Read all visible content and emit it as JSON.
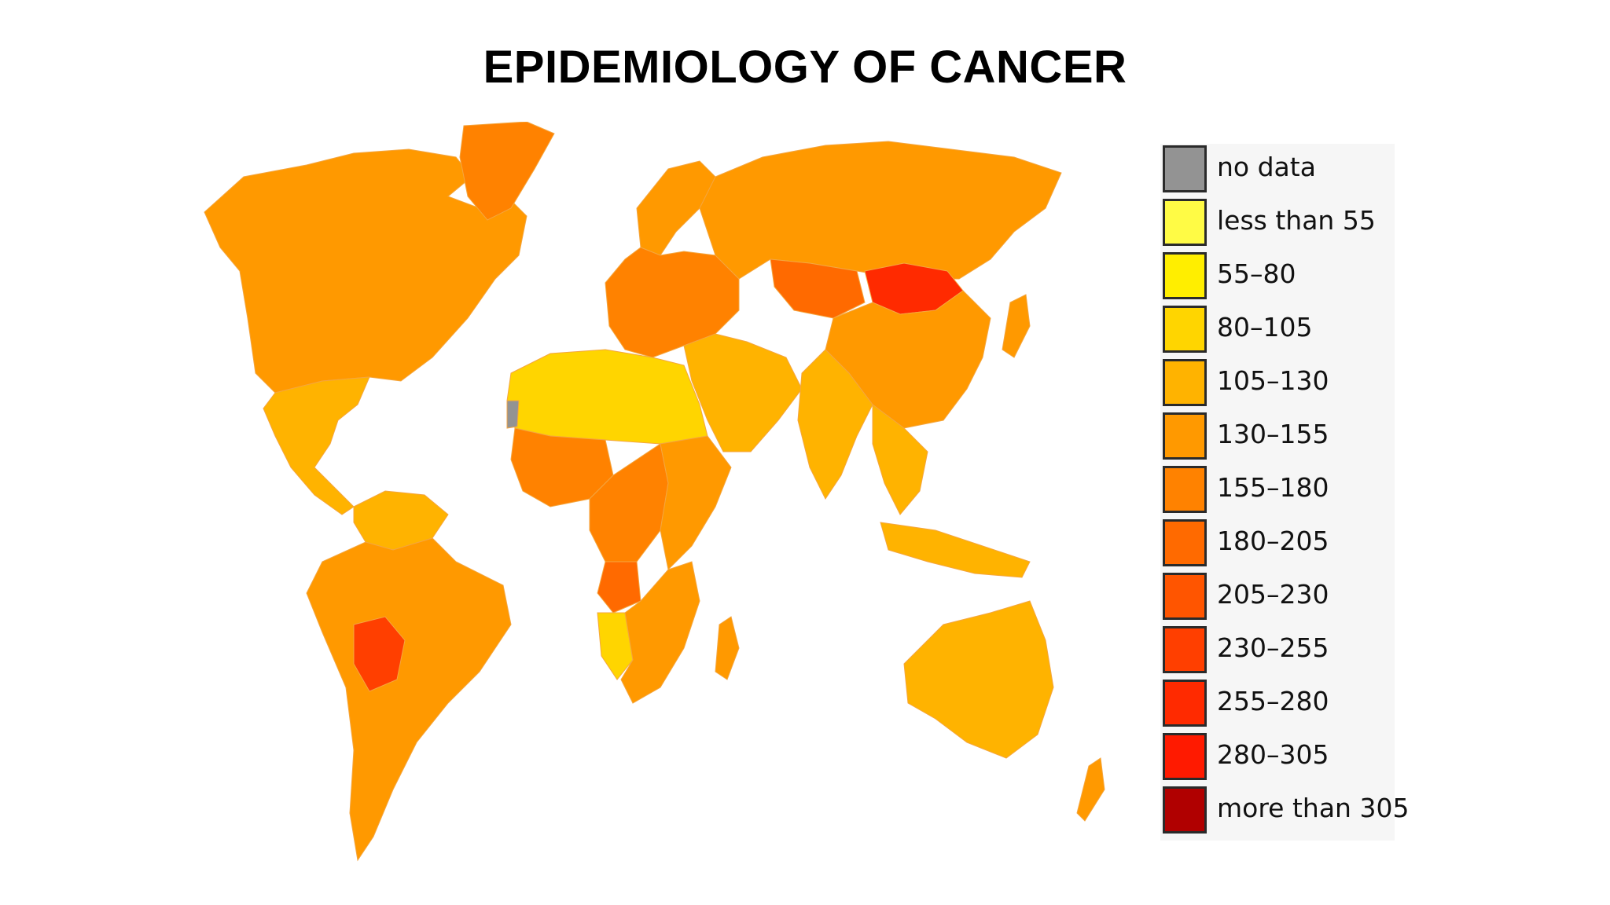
{
  "title": "EPIDEMIOLOGY OF CANCER",
  "legend": {
    "items": [
      {
        "label": "no data",
        "color": "#939393"
      },
      {
        "label": "less than 55",
        "color": "#fffb45"
      },
      {
        "label": "55–80",
        "color": "#ffee00"
      },
      {
        "label": "80–105",
        "color": "#ffd500"
      },
      {
        "label": "105–130",
        "color": "#ffb300"
      },
      {
        "label": "130–155",
        "color": "#ff9900"
      },
      {
        "label": "155–180",
        "color": "#ff8200"
      },
      {
        "label": "180–205",
        "color": "#ff6a00"
      },
      {
        "label": "205–230",
        "color": "#ff5500"
      },
      {
        "label": "230–255",
        "color": "#ff3f00"
      },
      {
        "label": "255–280",
        "color": "#ff2a00"
      },
      {
        "label": "280–305",
        "color": "#ff1a00"
      },
      {
        "label": "more than 305",
        "color": "#b00000"
      }
    ]
  },
  "map": {
    "regions": [
      {
        "name": "north-america",
        "color": "#ff9900"
      },
      {
        "name": "greenland",
        "color": "#ff8200"
      },
      {
        "name": "mexico-central-america",
        "color": "#ffb300"
      },
      {
        "name": "south-america",
        "color": "#ff9900"
      },
      {
        "name": "bolivia",
        "color": "#ff3f00"
      },
      {
        "name": "venezuela-colombia",
        "color": "#ffb300"
      },
      {
        "name": "europe",
        "color": "#ff8200"
      },
      {
        "name": "scandinavia",
        "color": "#ff9900"
      },
      {
        "name": "russia",
        "color": "#ff9900"
      },
      {
        "name": "kazakhstan",
        "color": "#ff6a00"
      },
      {
        "name": "mongolia",
        "color": "#ff2a00"
      },
      {
        "name": "china",
        "color": "#ff9900"
      },
      {
        "name": "middle-east",
        "color": "#ffb300"
      },
      {
        "name": "india",
        "color": "#ffb300"
      },
      {
        "name": "southeast-asia",
        "color": "#ffb300"
      },
      {
        "name": "north-africa",
        "color": "#ffd500"
      },
      {
        "name": "west-africa",
        "color": "#ff8200"
      },
      {
        "name": "central-africa",
        "color": "#ff8200"
      },
      {
        "name": "east-africa",
        "color": "#ff9900"
      },
      {
        "name": "angola",
        "color": "#ff6a00"
      },
      {
        "name": "southern-africa",
        "color": "#ff9900"
      },
      {
        "name": "namibia",
        "color": "#ffd500"
      },
      {
        "name": "madagascar",
        "color": "#ff9900"
      },
      {
        "name": "australia",
        "color": "#ffb300"
      },
      {
        "name": "indonesia",
        "color": "#ffb300"
      },
      {
        "name": "japan",
        "color": "#ff9900"
      },
      {
        "name": "western-sahara",
        "color": "#939393"
      },
      {
        "name": "new-zealand",
        "color": "#ff9900"
      }
    ]
  }
}
